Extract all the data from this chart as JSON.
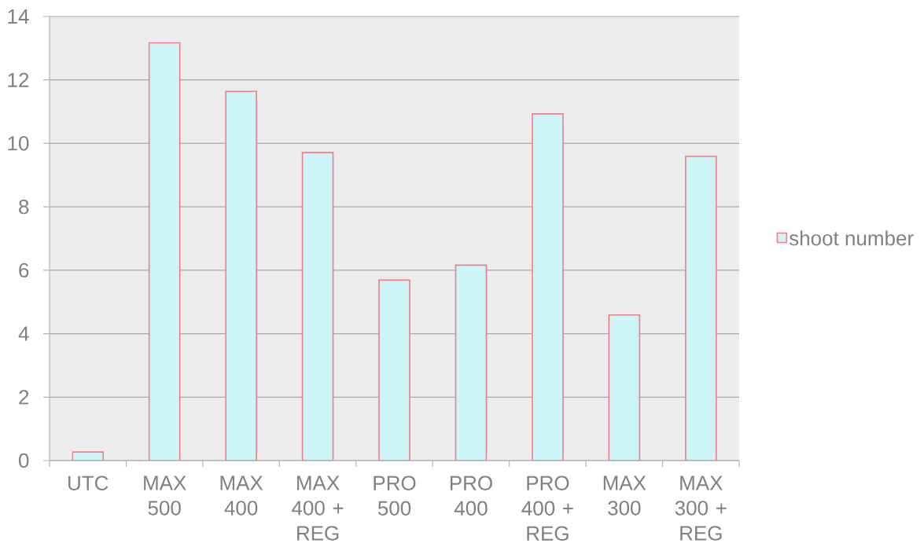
{
  "chart_data": {
    "type": "bar",
    "categories": [
      "UTC",
      "MAX 500",
      "MAX 400",
      "MAX 400 + REG",
      "PRO 500",
      "PRO 400",
      "PRO 400 + REG",
      "MAX 300",
      "MAX 300 + REG"
    ],
    "series": [
      {
        "name": "shoot number",
        "color": "#cdf5f7",
        "values": [
          0.27,
          13.17,
          11.64,
          9.71,
          5.69,
          6.16,
          10.93,
          4.59,
          9.59
        ]
      }
    ],
    "ylim": [
      0,
      14
    ],
    "yticks": [
      0,
      2,
      4,
      6,
      8,
      10,
      12,
      14
    ],
    "grid": "y",
    "legend": "right"
  }
}
